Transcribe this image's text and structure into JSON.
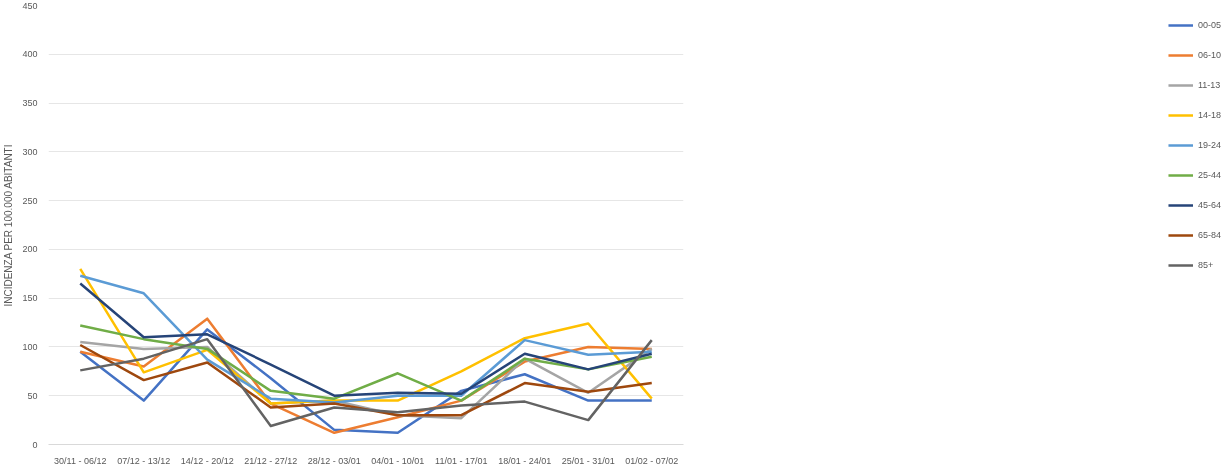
{
  "chart_data": {
    "type": "line",
    "ylabel": "INCIDENZA PER 100.000 ABITANTI",
    "categories": [
      "30/11 - 06/12",
      "07/12 - 13/12",
      "14/12 - 20/12",
      "21/12 - 27/12",
      "28/12 - 03/01",
      "04/01 - 10/01",
      "11/01 - 17/01",
      "18/01 - 24/01",
      "25/01 - 31/01",
      "01/02 - 07/02"
    ],
    "series": [
      {
        "name": "00-05",
        "color": "#4472c4",
        "values": [
          95,
          45,
          118,
          68,
          15,
          12,
          55,
          72,
          45,
          45
        ]
      },
      {
        "name": "06-10",
        "color": "#ed7d31",
        "values": [
          95,
          80,
          129,
          42,
          12,
          28,
          45,
          85,
          100,
          98
        ]
      },
      {
        "name": "11-13",
        "color": "#a5a5a5",
        "values": [
          105,
          98,
          100,
          42,
          45,
          30,
          27,
          88,
          53,
          98
        ]
      },
      {
        "name": "14-18",
        "color": "#ffc000",
        "values": [
          180,
          74,
          97,
          42,
          45,
          45,
          75,
          109,
          124,
          47
        ]
      },
      {
        "name": "19-24",
        "color": "#5b9bd5",
        "values": [
          173,
          155,
          87,
          47,
          43,
          50,
          50,
          107,
          92,
          95
        ]
      },
      {
        "name": "25-44",
        "color": "#70ad47",
        "values": [
          122,
          108,
          98,
          55,
          47,
          73,
          45,
          88,
          77,
          90
        ]
      },
      {
        "name": "45-64",
        "color": "#264478",
        "values": [
          165,
          110,
          113,
          82,
          50,
          53,
          52,
          93,
          77,
          93
        ]
      },
      {
        "name": "65-84",
        "color": "#9e480e",
        "values": [
          102,
          66,
          84,
          38,
          42,
          30,
          30,
          63,
          54,
          63
        ]
      },
      {
        "name": "85+",
        "color": "#636363",
        "values": [
          76,
          88,
          108,
          19,
          38,
          33,
          40,
          44,
          25,
          107
        ]
      }
    ],
    "ylim": [
      0,
      450
    ],
    "yticks": [
      0,
      50,
      100,
      150,
      200,
      250,
      300,
      350,
      400,
      450
    ],
    "grid": "y",
    "legend": "right",
    "marker": "none",
    "line_style": "solid"
  }
}
